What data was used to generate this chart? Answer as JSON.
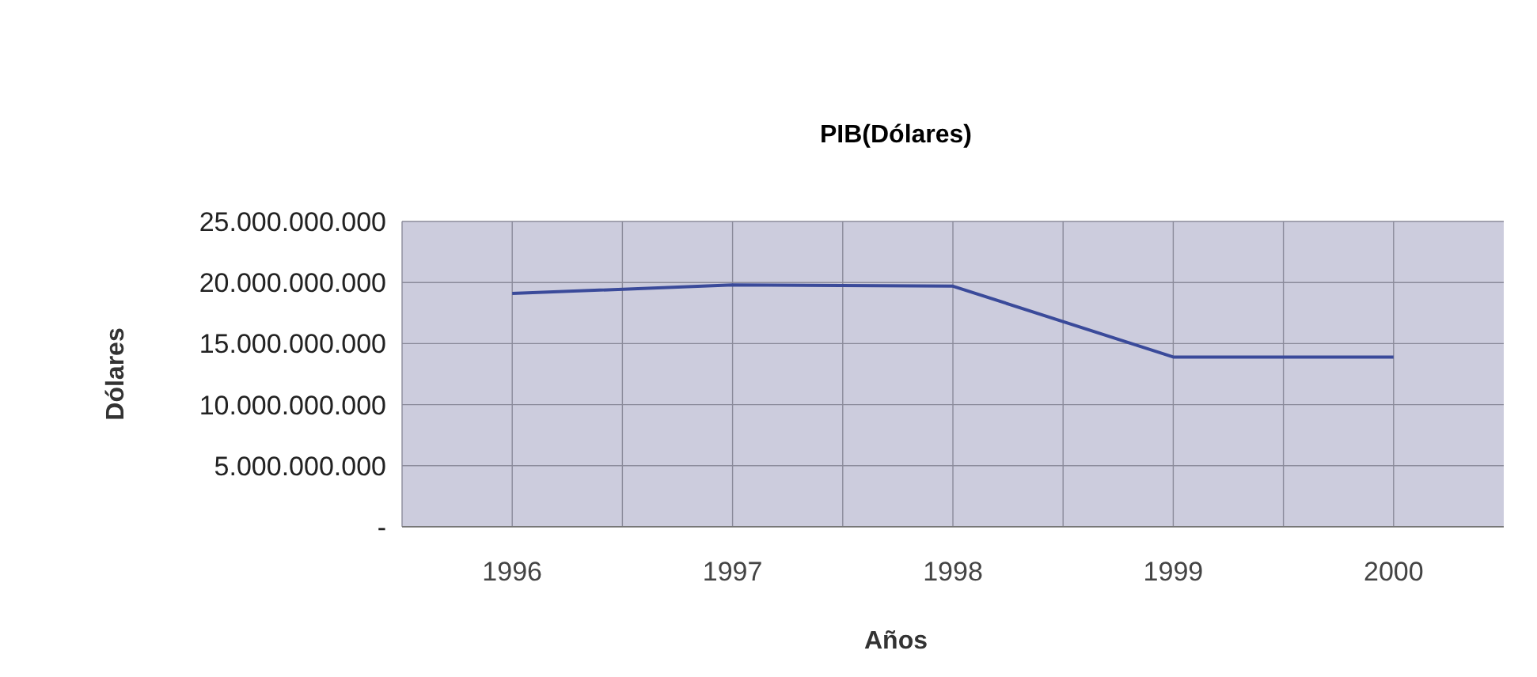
{
  "chart_data": {
    "type": "line",
    "title": "PIB(Dólares)",
    "xlabel": "Años",
    "ylabel": "Dólares",
    "categories": [
      "1996",
      "1997",
      "1998",
      "1999",
      "2000"
    ],
    "series": [
      {
        "color": "#3a4a9a",
        "values": [
          19100000000,
          19800000000,
          19700000000,
          13900000000,
          13900000000
        ]
      }
    ],
    "ylim": [
      0,
      25000000000
    ],
    "yticks": [
      {
        "value": 0,
        "label": "-"
      },
      {
        "value": 5000000000,
        "label": "5.000.000.000"
      },
      {
        "value": 10000000000,
        "label": "10.000.000.000"
      },
      {
        "value": 15000000000,
        "label": "15.000.000.000"
      },
      {
        "value": 20000000000,
        "label": "20.000.000.000"
      },
      {
        "value": 25000000000,
        "label": "25.000.000.000"
      }
    ],
    "grid": true,
    "marker": "none",
    "line_style": "solid"
  }
}
